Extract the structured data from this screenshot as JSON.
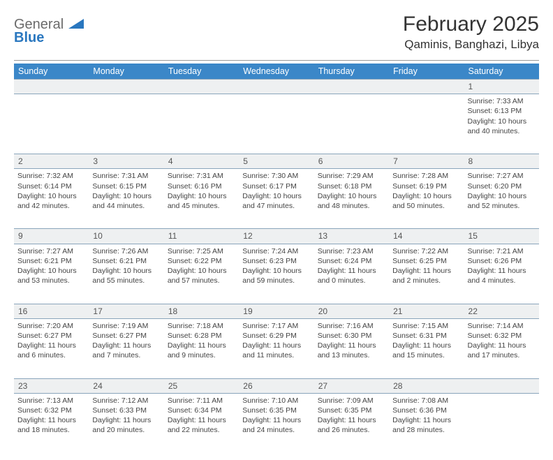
{
  "brand": {
    "general": "General",
    "blue": "Blue"
  },
  "title": "February 2025",
  "location": "Qaminis, Banghazi, Libya",
  "colors": {
    "header_bg": "#3b87c8",
    "header_text": "#ffffff",
    "daynum_bg": "#eef0f1",
    "border": "#8aa5bb",
    "logo_gray": "#6b6b6b",
    "logo_blue": "#2a77bf"
  },
  "typography": {
    "title_fontsize": 30,
    "location_fontsize": 17,
    "weekday_fontsize": 12.5,
    "daynum_fontsize": 12,
    "cell_fontsize": 10.5
  },
  "weekdays": [
    "Sunday",
    "Monday",
    "Tuesday",
    "Wednesday",
    "Thursday",
    "Friday",
    "Saturday"
  ],
  "weeks": [
    [
      null,
      null,
      null,
      null,
      null,
      null,
      {
        "d": "1",
        "sr": "Sunrise: 7:33 AM",
        "ss": "Sunset: 6:13 PM",
        "dl": "Daylight: 10 hours and 40 minutes."
      }
    ],
    [
      {
        "d": "2",
        "sr": "Sunrise: 7:32 AM",
        "ss": "Sunset: 6:14 PM",
        "dl": "Daylight: 10 hours and 42 minutes."
      },
      {
        "d": "3",
        "sr": "Sunrise: 7:31 AM",
        "ss": "Sunset: 6:15 PM",
        "dl": "Daylight: 10 hours and 44 minutes."
      },
      {
        "d": "4",
        "sr": "Sunrise: 7:31 AM",
        "ss": "Sunset: 6:16 PM",
        "dl": "Daylight: 10 hours and 45 minutes."
      },
      {
        "d": "5",
        "sr": "Sunrise: 7:30 AM",
        "ss": "Sunset: 6:17 PM",
        "dl": "Daylight: 10 hours and 47 minutes."
      },
      {
        "d": "6",
        "sr": "Sunrise: 7:29 AM",
        "ss": "Sunset: 6:18 PM",
        "dl": "Daylight: 10 hours and 48 minutes."
      },
      {
        "d": "7",
        "sr": "Sunrise: 7:28 AM",
        "ss": "Sunset: 6:19 PM",
        "dl": "Daylight: 10 hours and 50 minutes."
      },
      {
        "d": "8",
        "sr": "Sunrise: 7:27 AM",
        "ss": "Sunset: 6:20 PM",
        "dl": "Daylight: 10 hours and 52 minutes."
      }
    ],
    [
      {
        "d": "9",
        "sr": "Sunrise: 7:27 AM",
        "ss": "Sunset: 6:21 PM",
        "dl": "Daylight: 10 hours and 53 minutes."
      },
      {
        "d": "10",
        "sr": "Sunrise: 7:26 AM",
        "ss": "Sunset: 6:21 PM",
        "dl": "Daylight: 10 hours and 55 minutes."
      },
      {
        "d": "11",
        "sr": "Sunrise: 7:25 AM",
        "ss": "Sunset: 6:22 PM",
        "dl": "Daylight: 10 hours and 57 minutes."
      },
      {
        "d": "12",
        "sr": "Sunrise: 7:24 AM",
        "ss": "Sunset: 6:23 PM",
        "dl": "Daylight: 10 hours and 59 minutes."
      },
      {
        "d": "13",
        "sr": "Sunrise: 7:23 AM",
        "ss": "Sunset: 6:24 PM",
        "dl": "Daylight: 11 hours and 0 minutes."
      },
      {
        "d": "14",
        "sr": "Sunrise: 7:22 AM",
        "ss": "Sunset: 6:25 PM",
        "dl": "Daylight: 11 hours and 2 minutes."
      },
      {
        "d": "15",
        "sr": "Sunrise: 7:21 AM",
        "ss": "Sunset: 6:26 PM",
        "dl": "Daylight: 11 hours and 4 minutes."
      }
    ],
    [
      {
        "d": "16",
        "sr": "Sunrise: 7:20 AM",
        "ss": "Sunset: 6:27 PM",
        "dl": "Daylight: 11 hours and 6 minutes."
      },
      {
        "d": "17",
        "sr": "Sunrise: 7:19 AM",
        "ss": "Sunset: 6:27 PM",
        "dl": "Daylight: 11 hours and 7 minutes."
      },
      {
        "d": "18",
        "sr": "Sunrise: 7:18 AM",
        "ss": "Sunset: 6:28 PM",
        "dl": "Daylight: 11 hours and 9 minutes."
      },
      {
        "d": "19",
        "sr": "Sunrise: 7:17 AM",
        "ss": "Sunset: 6:29 PM",
        "dl": "Daylight: 11 hours and 11 minutes."
      },
      {
        "d": "20",
        "sr": "Sunrise: 7:16 AM",
        "ss": "Sunset: 6:30 PM",
        "dl": "Daylight: 11 hours and 13 minutes."
      },
      {
        "d": "21",
        "sr": "Sunrise: 7:15 AM",
        "ss": "Sunset: 6:31 PM",
        "dl": "Daylight: 11 hours and 15 minutes."
      },
      {
        "d": "22",
        "sr": "Sunrise: 7:14 AM",
        "ss": "Sunset: 6:32 PM",
        "dl": "Daylight: 11 hours and 17 minutes."
      }
    ],
    [
      {
        "d": "23",
        "sr": "Sunrise: 7:13 AM",
        "ss": "Sunset: 6:32 PM",
        "dl": "Daylight: 11 hours and 18 minutes."
      },
      {
        "d": "24",
        "sr": "Sunrise: 7:12 AM",
        "ss": "Sunset: 6:33 PM",
        "dl": "Daylight: 11 hours and 20 minutes."
      },
      {
        "d": "25",
        "sr": "Sunrise: 7:11 AM",
        "ss": "Sunset: 6:34 PM",
        "dl": "Daylight: 11 hours and 22 minutes."
      },
      {
        "d": "26",
        "sr": "Sunrise: 7:10 AM",
        "ss": "Sunset: 6:35 PM",
        "dl": "Daylight: 11 hours and 24 minutes."
      },
      {
        "d": "27",
        "sr": "Sunrise: 7:09 AM",
        "ss": "Sunset: 6:35 PM",
        "dl": "Daylight: 11 hours and 26 minutes."
      },
      {
        "d": "28",
        "sr": "Sunrise: 7:08 AM",
        "ss": "Sunset: 6:36 PM",
        "dl": "Daylight: 11 hours and 28 minutes."
      },
      null
    ]
  ]
}
